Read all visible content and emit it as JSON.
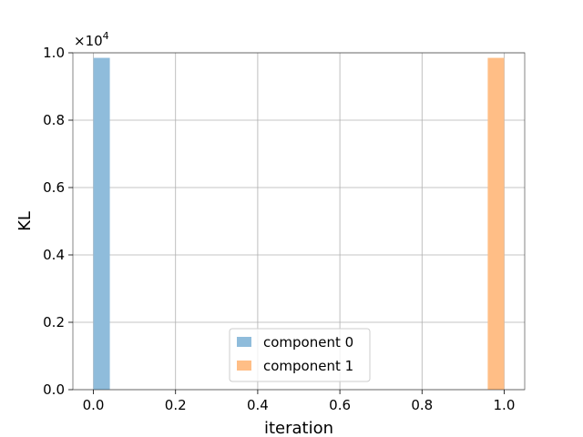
{
  "chart_data": {
    "type": "bar",
    "title": "",
    "xlabel": "iteration",
    "ylabel": "KL",
    "xlim": [
      -0.05,
      1.05
    ],
    "ylim": [
      0,
      1.0
    ],
    "y_multiplier": "×10",
    "y_multiplier_exponent": "4",
    "x_ticks": [
      0.0,
      0.2,
      0.4,
      0.6,
      0.8,
      1.0
    ],
    "x_tick_labels": [
      "0.0",
      "0.2",
      "0.4",
      "0.6",
      "0.8",
      "1.0"
    ],
    "y_ticks": [
      0.0,
      0.2,
      0.4,
      0.6,
      0.8,
      1.0
    ],
    "y_tick_labels": [
      "0.0",
      "0.2",
      "0.4",
      "0.6",
      "0.8",
      "1.0"
    ],
    "grid": true,
    "legend_position": "bottom-center",
    "bin_width": 0.04,
    "series": [
      {
        "name": "component 0",
        "color": "#8fbcdb",
        "bars": [
          {
            "x_start": 0.0,
            "x_end": 0.04,
            "value": 0.985
          }
        ]
      },
      {
        "name": "component 1",
        "color": "#ffbe86",
        "bars": [
          {
            "x_start": 0.96,
            "x_end": 1.0,
            "value": 0.985
          }
        ]
      }
    ]
  }
}
